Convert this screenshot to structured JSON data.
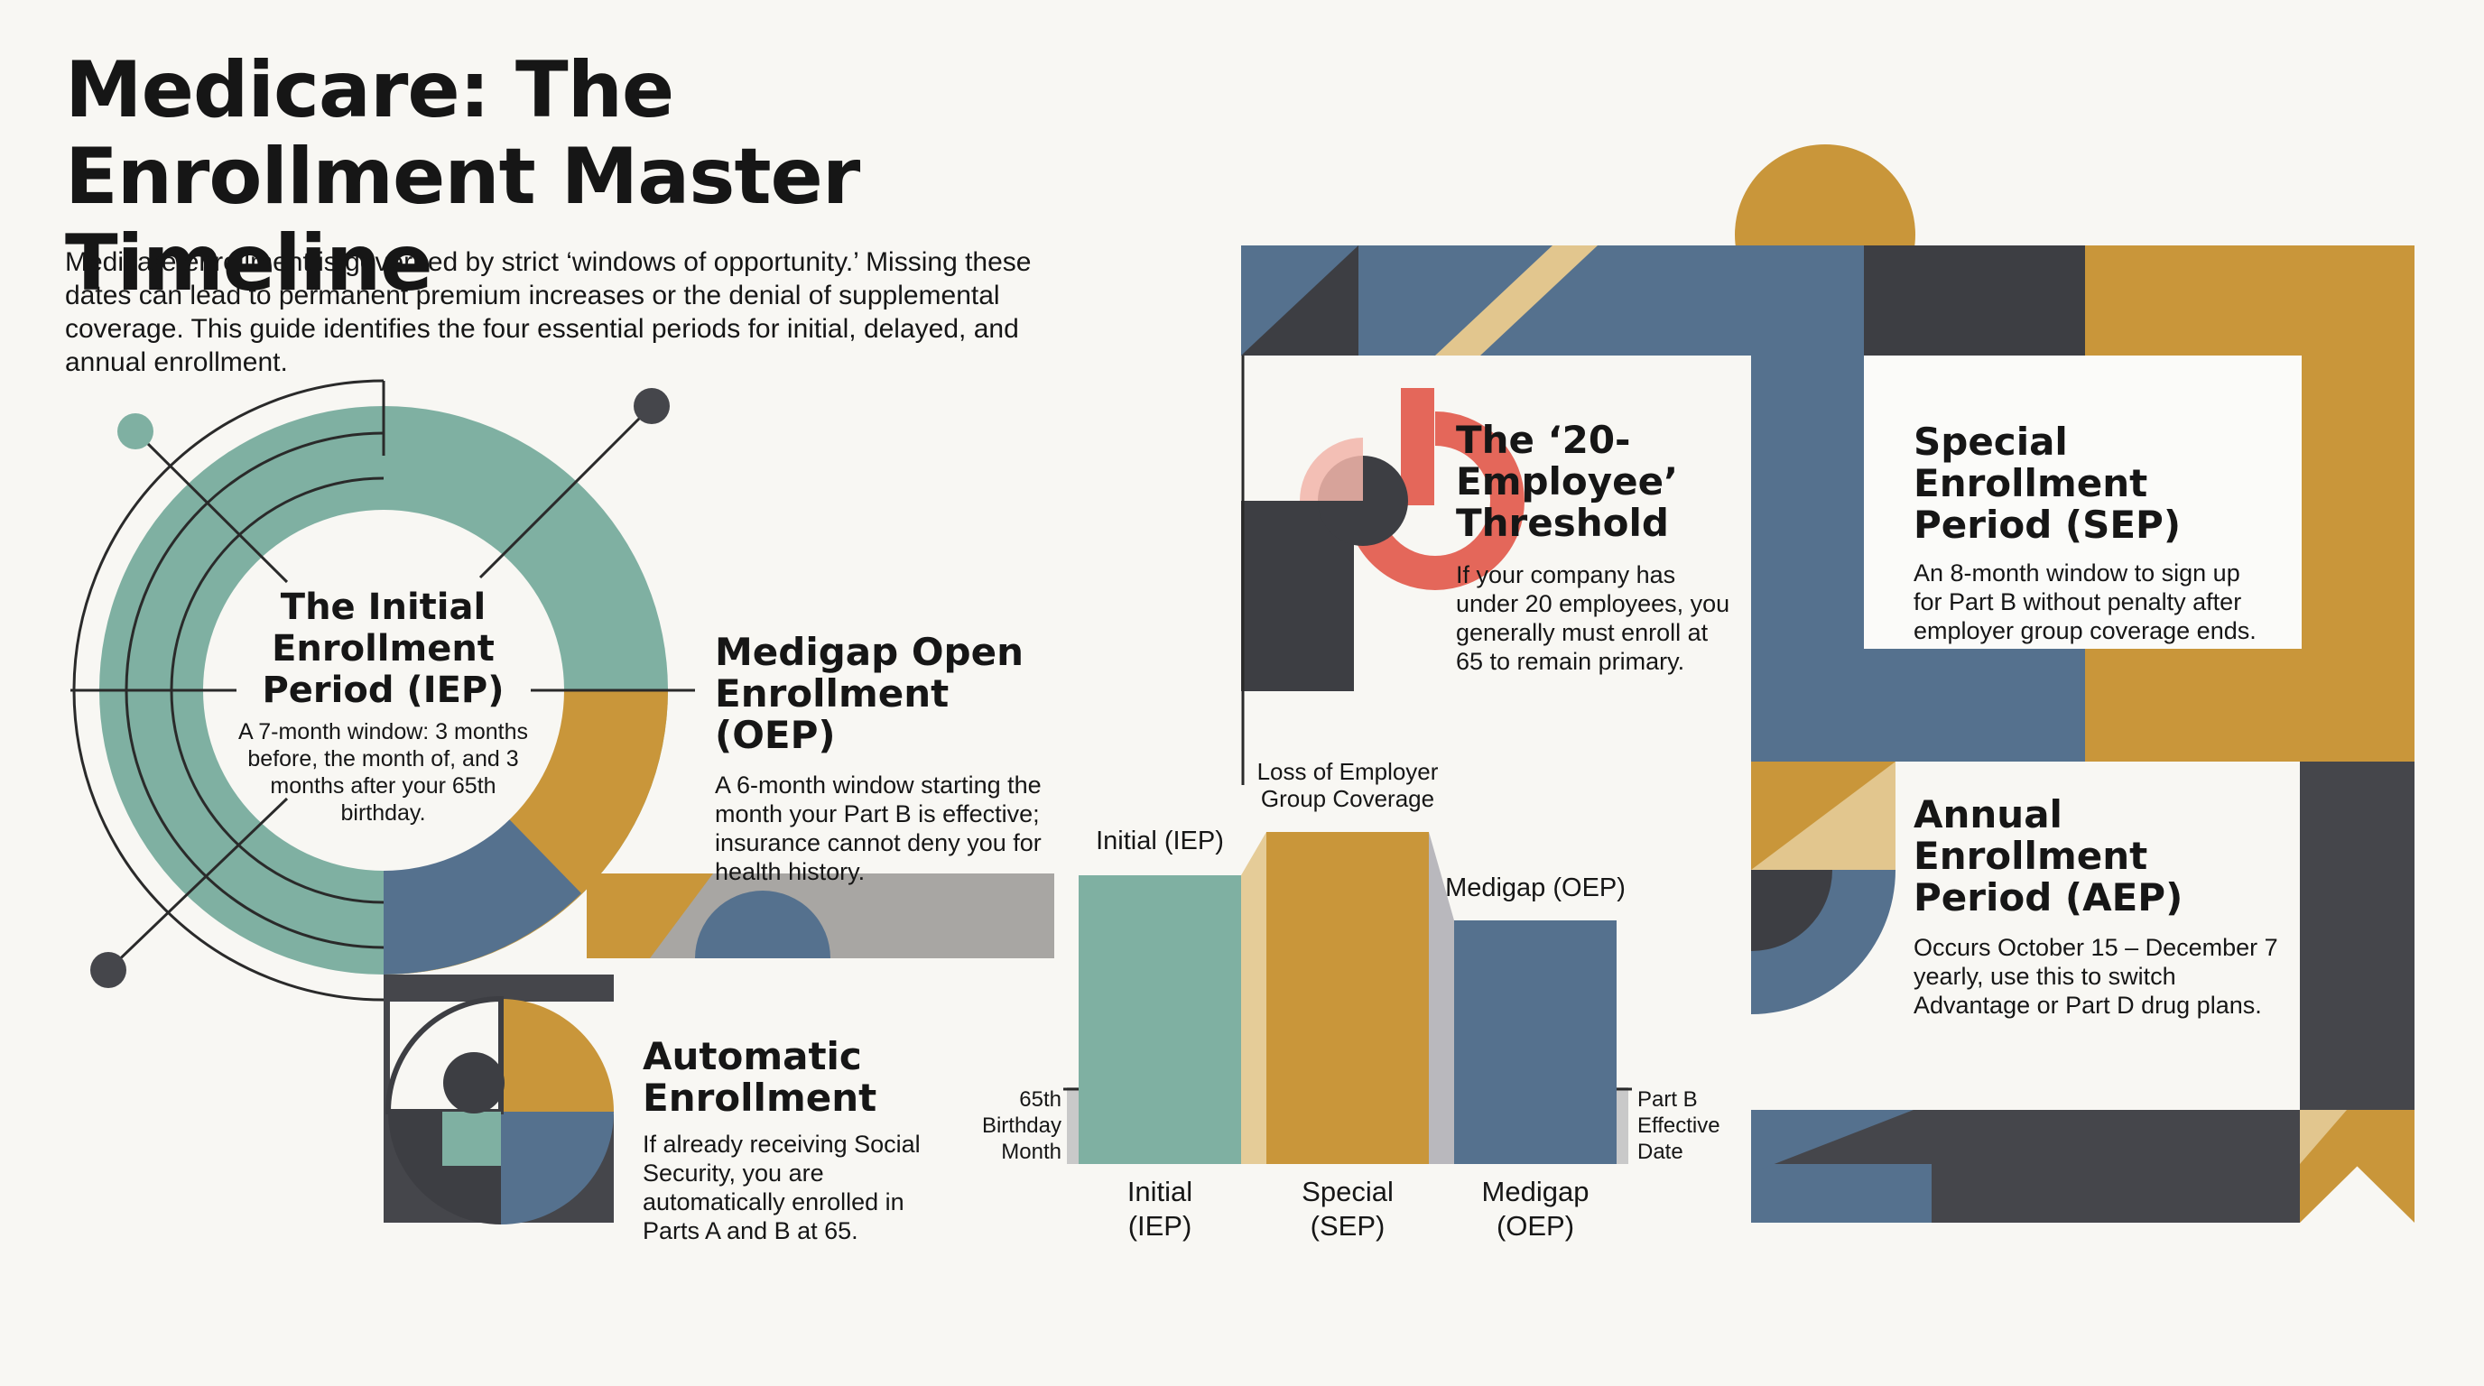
{
  "title": "Medicare: The Enrollment Master Timeline",
  "intro": "Medicare enrollment is governed by strict ‘windows of opportunity.’ Missing these dates can lead to permanent premium increases or the denial of supplemental coverage. This guide identifies the four essential periods for initial, delayed, and annual enrollment.",
  "sections": {
    "iep": {
      "heading": "The Initial Enrollment Period (IEP)",
      "text": "A 7-month window: 3 months before, the month of, and 3 months after your 65th birthday."
    },
    "medigap": {
      "heading": "Medigap Open Enrollment (OEP)",
      "text": "A 6-month window starting the month your Part B is effective; insurance cannot deny you for health history."
    },
    "automatic": {
      "heading": "Automatic Enrollment",
      "text": "If already receiving Social Security, you are automatically enrolled in Parts A and B at 65."
    },
    "threshold": {
      "heading": "The ‘20-Employee’ Threshold",
      "text": "If your company has under 20 employees, you generally must enroll at 65 to remain primary."
    },
    "sep": {
      "heading": "Special Enrollment Period (SEP)",
      "text": "An 8-month window to sign up for Part B without penalty after employer group coverage ends."
    },
    "aep": {
      "heading": "Annual Enrollment Period (AEP)",
      "text": "Occurs October 15 – December 7 yearly, use this to switch Advantage or Part D drug plans."
    }
  },
  "timeline": {
    "bars": [
      {
        "top_label": "Initial (IEP)",
        "bottom_label": "Initial (IEP)",
        "color": "#7fb0a2",
        "months": 7
      },
      {
        "top_label": "Loss of Employer Group Coverage",
        "bottom_label": "Special (SEP)",
        "color": "#c9963a",
        "months": 8
      },
      {
        "top_label": "Medigap (OEP)",
        "bottom_label": "Medigap (OEP)",
        "color": "#55718e",
        "months": 6
      }
    ],
    "markers": {
      "left": "65th Birthday Month",
      "right": "Part B Effective Date"
    }
  },
  "colors": {
    "teal": "#7fb0a2",
    "gold": "#c9963a",
    "blue": "#55718e",
    "charcoal": "#3d3e43",
    "red": "#e4675a",
    "background": "#f8f7f3"
  }
}
